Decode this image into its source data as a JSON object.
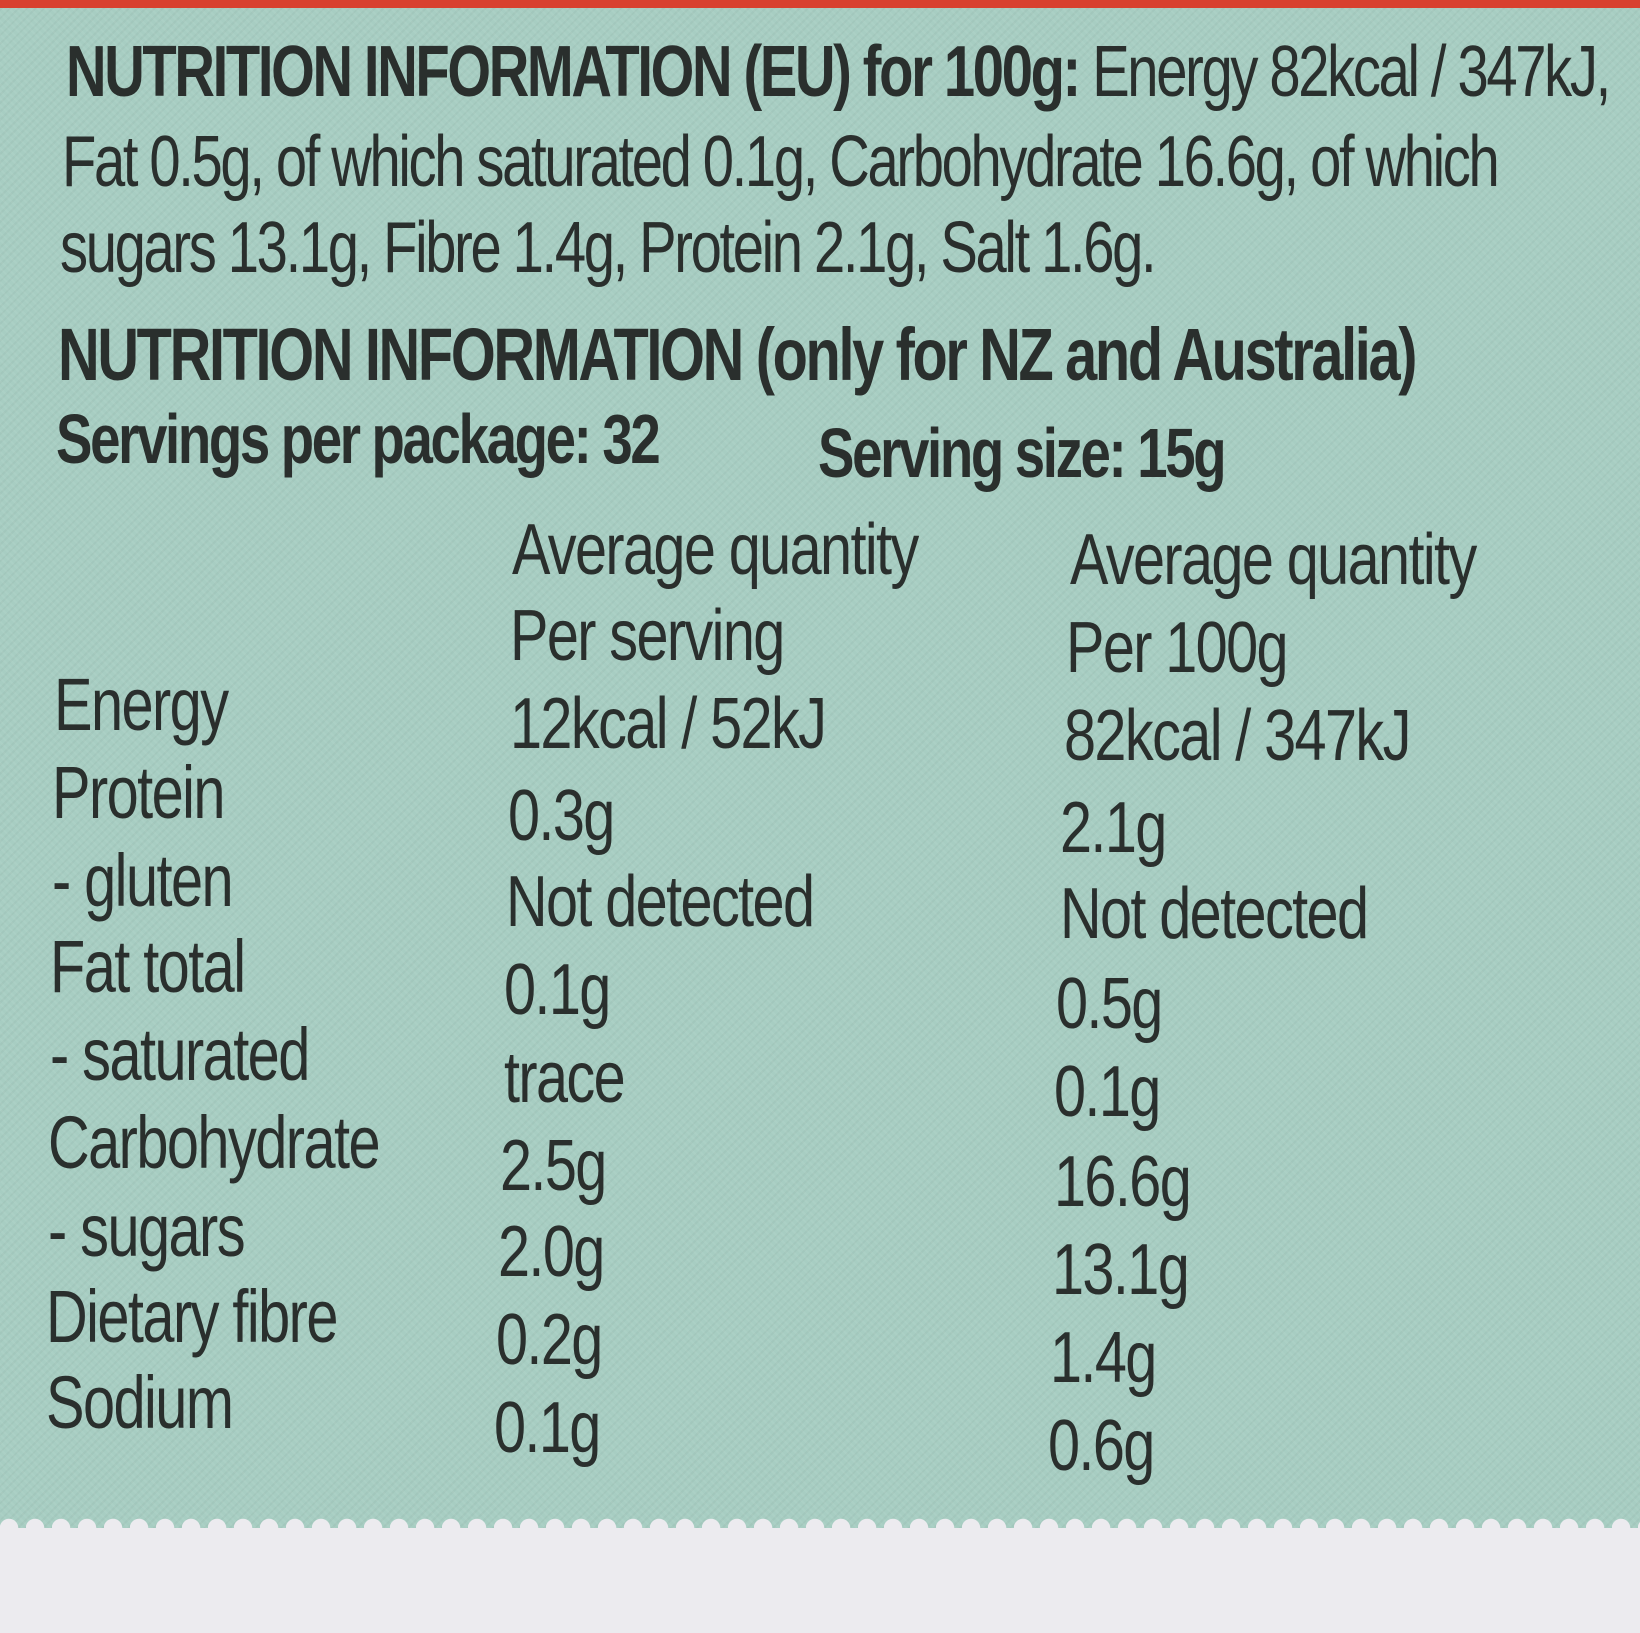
{
  "eu_info": {
    "heading": "NUTRITION INFORMATION (EU) for 100g:",
    "line1_rest": "Energy 82kcal / 347kJ,",
    "line2": "Fat 0.5g, of which saturated 0.1g, Carbohydrate 16.6g, of which",
    "line3": "sugars 13.1g, Fibre 1.4g, Protein 2.1g, Salt 1.6g."
  },
  "nz_info": {
    "heading": "NUTRITION INFORMATION (only for NZ and Australia)",
    "servings_per_package": "Servings per package: 32",
    "serving_size": "Serving size: 15g",
    "columns": [
      {
        "line1": "Average quantity",
        "line2": "Per serving"
      },
      {
        "line1": "Average quantity",
        "line2": "Per 100g"
      }
    ],
    "rows": [
      {
        "label": "Energy",
        "per_serving": "12kcal / 52kJ",
        "per_100g": "82kcal / 347kJ"
      },
      {
        "label": "Protein",
        "per_serving": "0.3g",
        "per_100g": "2.1g"
      },
      {
        "label": "- gluten",
        "per_serving": "Not detected",
        "per_100g": "Not detected"
      },
      {
        "label": "Fat total",
        "per_serving": "0.1g",
        "per_100g": "0.5g"
      },
      {
        "label": "- saturated",
        "per_serving": "trace",
        "per_100g": "0.1g"
      },
      {
        "label": "Carbohydrate",
        "per_serving": "2.5g",
        "per_100g": "16.6g"
      },
      {
        "label": "- sugars",
        "per_serving": "2.0g",
        "per_100g": "13.1g"
      },
      {
        "label": "Dietary fibre",
        "per_serving": "0.2g",
        "per_100g": "1.4g"
      },
      {
        "label": "Sodium",
        "per_serving": "0.1g",
        "per_100g": "0.6g"
      }
    ]
  }
}
